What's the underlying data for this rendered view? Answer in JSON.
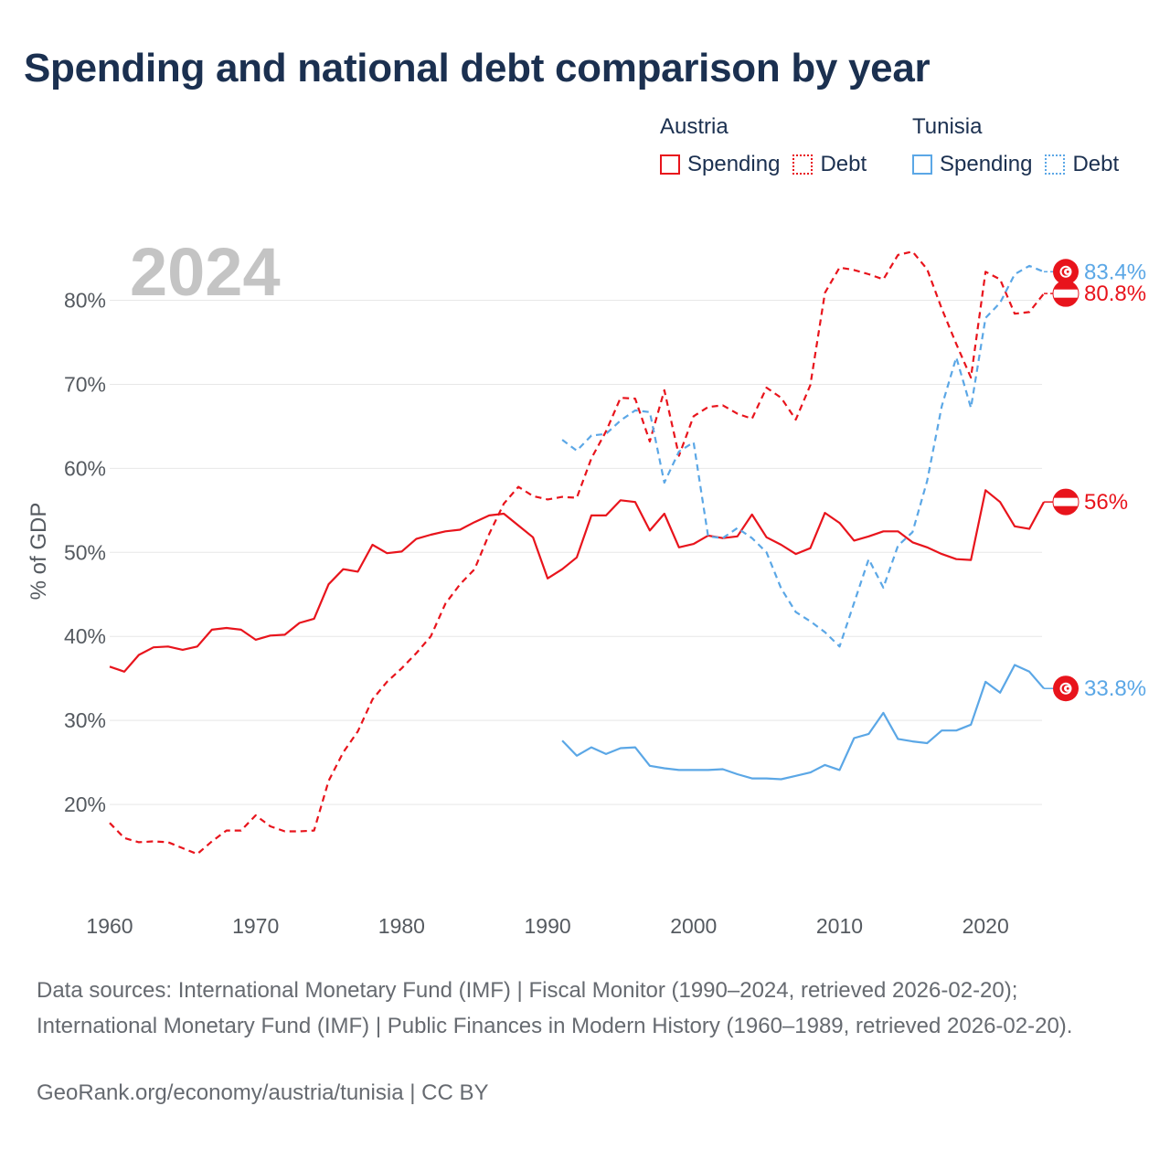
{
  "title": "Spending and national debt comparison by year",
  "legend": {
    "groups": [
      {
        "name": "Austria",
        "color": "#e8141c",
        "items": [
          {
            "label": "Spending",
            "style": "solid"
          },
          {
            "label": "Debt",
            "style": "dotted"
          }
        ]
      },
      {
        "name": "Tunisia",
        "color": "#5ba7e6",
        "items": [
          {
            "label": "Spending",
            "style": "solid"
          },
          {
            "label": "Debt",
            "style": "dotted"
          }
        ]
      }
    ]
  },
  "year_label": "2024",
  "source_text": "Data sources: International Monetary Fund (IMF) | Fiscal Monitor (1990–2024, retrieved 2026-02-20); International Monetary Fund (IMF) | Public Finances in Modern History (1960–1989, retrieved 2026-02-20).",
  "credit_text": "GeoRank.org/economy/austria/tunisia | CC BY",
  "chart_data": {
    "type": "line",
    "title": "Spending and national debt comparison by year",
    "xlabel": "",
    "ylabel": "% of GDP",
    "xlim": [
      1960,
      2025.5
    ],
    "ylim": [
      10,
      88
    ],
    "grid": true,
    "x_ticks": [
      1960,
      1970,
      1980,
      1990,
      2000,
      2010,
      2020
    ],
    "y_ticks": [
      20,
      30,
      40,
      50,
      60,
      70,
      80
    ],
    "y_tick_labels": [
      "20%",
      "30%",
      "40%",
      "50%",
      "60%",
      "70%",
      "80%"
    ],
    "series": [
      {
        "name": "Austria Spending",
        "country": "Austria",
        "metric": "Spending",
        "color": "#e8141c",
        "dash": "solid",
        "end_label": "56%",
        "flag": "austria",
        "x_start": 1960,
        "values": [
          36.4,
          35.8,
          37.8,
          38.7,
          38.8,
          38.4,
          38.8,
          40.8,
          41.0,
          40.8,
          39.6,
          40.1,
          40.2,
          41.6,
          42.1,
          46.2,
          48.0,
          47.7,
          50.9,
          49.9,
          50.1,
          51.6,
          52.1,
          52.5,
          52.7,
          53.6,
          54.4,
          54.6,
          53.2,
          51.8,
          46.9,
          48.0,
          49.4,
          54.4,
          54.4,
          56.2,
          56.0,
          52.6,
          54.6,
          50.6,
          51.0,
          52.0,
          51.7,
          51.9,
          54.5,
          51.8,
          50.9,
          49.8,
          50.5,
          54.7,
          53.5,
          51.4,
          51.9,
          52.5,
          52.5,
          51.2,
          50.6,
          49.8,
          49.2,
          49.1,
          57.4,
          56.0,
          53.1,
          52.8,
          56.0
        ]
      },
      {
        "name": "Austria Debt",
        "country": "Austria",
        "metric": "Debt",
        "color": "#e8141c",
        "dash": "dashed",
        "end_label": "80.8%",
        "flag": "austria",
        "x_start": 1960,
        "values": [
          17.8,
          16.0,
          15.5,
          15.6,
          15.5,
          14.8,
          14.1,
          15.6,
          16.9,
          16.9,
          18.7,
          17.4,
          16.8,
          16.8,
          16.9,
          22.8,
          26.2,
          28.7,
          32.5,
          34.6,
          36.2,
          38.0,
          40.0,
          43.9,
          46.2,
          48.0,
          52.2,
          55.8,
          57.8,
          56.7,
          56.3,
          56.6,
          56.5,
          61.2,
          64.4,
          68.4,
          68.3,
          63.2,
          69.3,
          61.5,
          66.2,
          67.3,
          67.5,
          66.5,
          65.9,
          69.6,
          68.4,
          65.8,
          69.9,
          80.9,
          83.9,
          83.6,
          83.1,
          82.5,
          85.4,
          85.8,
          83.7,
          79.0,
          74.8,
          70.8,
          83.4,
          82.5,
          78.4,
          78.6,
          80.8
        ]
      },
      {
        "name": "Tunisia Spending",
        "country": "Tunisia",
        "metric": "Spending",
        "color": "#5ba7e6",
        "dash": "solid",
        "end_label": "33.8%",
        "flag": "tunisia",
        "x_start": 1991,
        "values": [
          27.6,
          25.8,
          26.8,
          26.0,
          26.7,
          26.8,
          24.6,
          24.3,
          24.1,
          24.1,
          24.1,
          24.2,
          23.6,
          23.1,
          23.1,
          23.0,
          23.4,
          23.8,
          24.7,
          24.1,
          27.9,
          28.4,
          30.9,
          27.8,
          27.5,
          27.3,
          28.8,
          28.8,
          29.5,
          34.6,
          33.3,
          36.6,
          35.8,
          33.8
        ]
      },
      {
        "name": "Tunisia Debt",
        "country": "Tunisia",
        "metric": "Debt",
        "color": "#5ba7e6",
        "dash": "dashed",
        "end_label": "83.4%",
        "flag": "tunisia",
        "x_start": 1991,
        "values": [
          63.4,
          62.1,
          63.9,
          64.1,
          65.7,
          66.9,
          66.7,
          58.3,
          62.0,
          63.1,
          51.9,
          51.7,
          52.9,
          51.7,
          50.0,
          45.7,
          42.9,
          41.8,
          40.5,
          38.8,
          44.0,
          49.2,
          45.8,
          50.8,
          52.4,
          58.5,
          67.4,
          73.2,
          67.2,
          77.9,
          79.7,
          83.1,
          84.1,
          83.4
        ]
      }
    ]
  }
}
